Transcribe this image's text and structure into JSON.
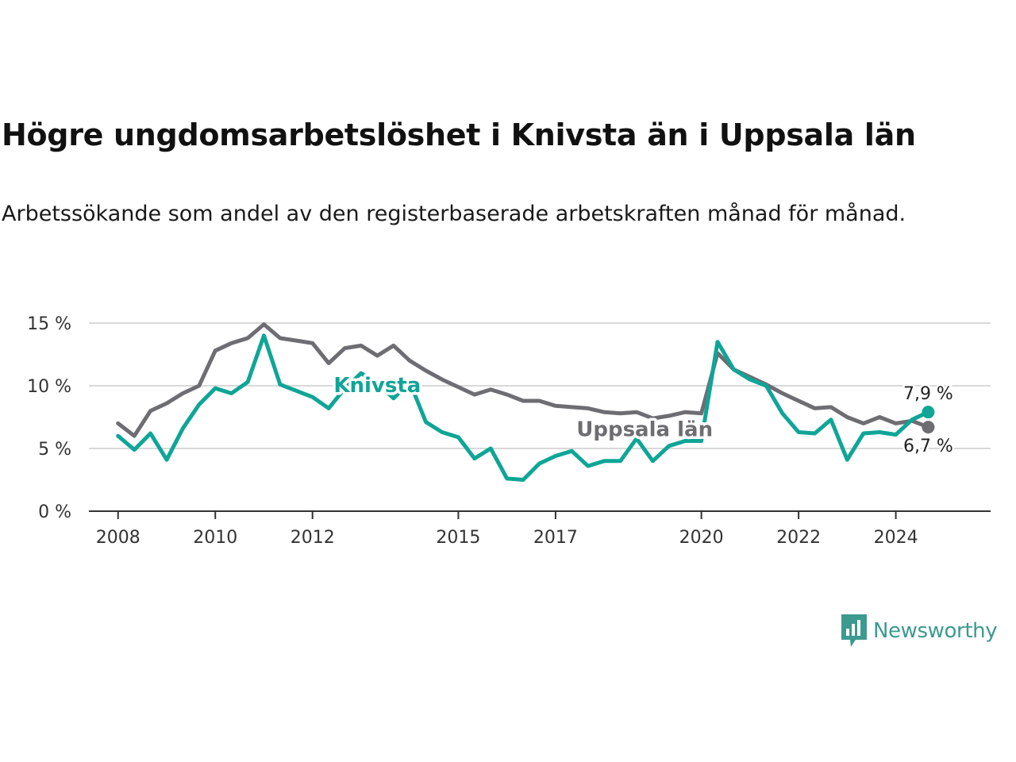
{
  "header": {
    "title": "Högre ungdomsarbetslöshet i Knivsta än i Uppsala län",
    "subtitle": "Arbetssökande som andel av den registerbaserade arbetskraften månad för månad."
  },
  "branding": {
    "name": "Newsworthy",
    "icon": "newsworthy-logo-icon",
    "color": "#3c9a8f"
  },
  "chart_data": {
    "type": "line",
    "x_type": "date",
    "x": [
      "2008-01",
      "2008-05",
      "2008-09",
      "2009-01",
      "2009-05",
      "2009-09",
      "2010-01",
      "2010-05",
      "2010-09",
      "2011-01",
      "2011-05",
      "2011-09",
      "2012-01",
      "2012-05",
      "2012-09",
      "2013-01",
      "2013-05",
      "2013-09",
      "2014-01",
      "2014-05",
      "2014-09",
      "2015-01",
      "2015-05",
      "2015-09",
      "2016-01",
      "2016-05",
      "2016-09",
      "2017-01",
      "2017-05",
      "2017-09",
      "2018-01",
      "2018-05",
      "2018-09",
      "2019-01",
      "2019-05",
      "2019-09",
      "2020-01",
      "2020-05",
      "2020-09",
      "2021-01",
      "2021-05",
      "2021-09",
      "2022-01",
      "2022-05",
      "2022-09",
      "2023-01",
      "2023-05",
      "2023-09",
      "2024-01",
      "2024-05",
      "2024-09"
    ],
    "xticks": [
      "2008",
      "2010",
      "2012",
      "2015",
      "2017",
      "2020",
      "2022",
      "2024"
    ],
    "ylim": [
      0,
      15
    ],
    "yticks": [
      0,
      5,
      10,
      15
    ],
    "ytick_labels": [
      "0 %",
      "5 %",
      "10 %",
      "15 %"
    ],
    "grid": true,
    "series": [
      {
        "name": "Uppsala län",
        "color": "#6e6d72",
        "values": [
          7.0,
          6.0,
          8.0,
          8.6,
          9.4,
          10.0,
          12.8,
          13.4,
          13.8,
          14.9,
          13.8,
          13.6,
          13.4,
          11.8,
          13.0,
          13.2,
          12.4,
          13.2,
          12.0,
          11.2,
          10.5,
          9.9,
          9.3,
          9.7,
          9.3,
          8.8,
          8.8,
          8.4,
          8.3,
          8.2,
          7.9,
          7.8,
          7.9,
          7.4,
          7.6,
          7.9,
          7.8,
          12.6,
          11.3,
          10.7,
          10.1,
          9.4,
          8.8,
          8.2,
          8.3,
          7.5,
          7.0,
          7.5,
          7.0,
          7.2,
          6.7
        ]
      },
      {
        "name": "Knivsta",
        "color": "#0fa597",
        "values": [
          6.0,
          4.9,
          6.2,
          4.1,
          6.6,
          8.5,
          9.8,
          9.4,
          10.3,
          14.0,
          10.1,
          9.6,
          9.1,
          8.2,
          9.8,
          11.0,
          10.2,
          9.0,
          10.3,
          7.1,
          6.3,
          5.9,
          4.2,
          5.0,
          2.6,
          2.5,
          3.8,
          4.4,
          4.8,
          3.6,
          4.0,
          4.0,
          5.8,
          4.0,
          5.2,
          5.6,
          5.6,
          13.5,
          11.3,
          10.5,
          10.0,
          7.8,
          6.3,
          6.2,
          7.3,
          4.1,
          6.2,
          6.3,
          6.1,
          7.3,
          7.9
        ]
      }
    ],
    "annotations": [
      {
        "series": "Knivsta",
        "label": "Knivsta",
        "x": "2013-05",
        "y": 10.0
      },
      {
        "series": "Uppsala län",
        "label": "Uppsala län",
        "x": "2018-11",
        "y": 6.5
      }
    ],
    "end_labels": [
      {
        "series": "Knivsta",
        "text": "7,9 %",
        "x": "2024-09",
        "y": 7.9
      },
      {
        "series": "Uppsala län",
        "text": "6,7 %",
        "x": "2024-09",
        "y": 6.7
      }
    ]
  }
}
